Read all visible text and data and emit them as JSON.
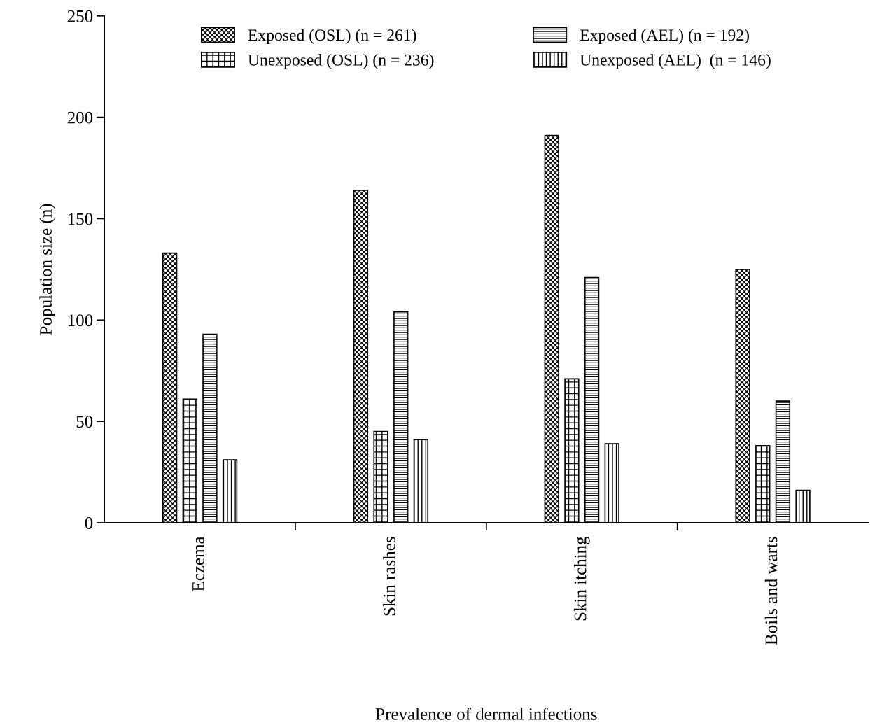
{
  "chart_data": {
    "type": "bar",
    "xlabel": "Prevalence of dermal infections",
    "ylabel": "Population size (n)",
    "categories": [
      "Eczema",
      "Skin rashes",
      "Skin itching",
      "Boils and warts"
    ],
    "series": [
      {
        "name": "Exposed (OSL) (n = 261)",
        "color": "#000000",
        "values": [
          133,
          164,
          191,
          125
        ]
      },
      {
        "name": "Unexposed (OSL) (n = 236)",
        "color": "#000000",
        "values": [
          61,
          45,
          71,
          38
        ]
      },
      {
        "name": "Exposed (AEL) (n = 192)",
        "color": "#000000",
        "values": [
          93,
          104,
          121,
          60
        ]
      },
      {
        "name": "Unexposed (AEL)  (n = 146)",
        "color": "#000000",
        "values": [
          31,
          41,
          39,
          16
        ]
      }
    ],
    "ylim": [
      0,
      250
    ],
    "yticks": [
      0,
      50,
      100,
      150,
      200,
      250
    ],
    "grid": false,
    "legend": "top"
  }
}
